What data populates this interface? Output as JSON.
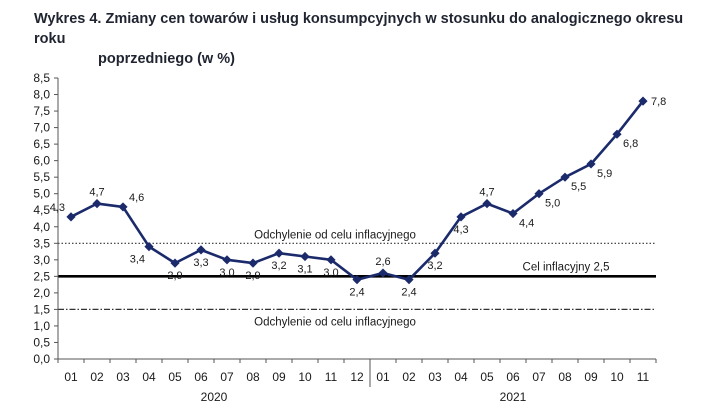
{
  "title": {
    "line1": "Wykres 4. Zmiany cen towarów i usług konsumpcyjnych w stosunku do analogicznego okresu roku",
    "line2": "poprzedniego (w %)"
  },
  "colors": {
    "series": "#1b2a6b",
    "axis": "#555555",
    "target_line": "#000000",
    "deviation_line": "#333333",
    "title": "#1f2430"
  },
  "chart_data": {
    "type": "line",
    "title": "Wykres 4. Zmiany cen towarów i usług konsumpcyjnych w stosunku do analogicznego okresu roku poprzedniego (w %)",
    "xlabel": "",
    "ylabel": "",
    "categories": [
      "01",
      "02",
      "03",
      "04",
      "05",
      "06",
      "07",
      "08",
      "09",
      "10",
      "11",
      "12",
      "01",
      "02",
      "03",
      "04",
      "05",
      "06",
      "07",
      "08",
      "09",
      "10",
      "11"
    ],
    "year_groups": [
      {
        "label": "2020",
        "start": 0,
        "end": 11
      },
      {
        "label": "2021",
        "start": 12,
        "end": 22
      }
    ],
    "series": [
      {
        "values": [
          4.3,
          4.7,
          4.6,
          3.4,
          2.9,
          3.3,
          3.0,
          2.9,
          3.2,
          3.1,
          3.0,
          2.4,
          2.6,
          2.4,
          3.2,
          4.3,
          4.7,
          4.4,
          5.0,
          5.5,
          5.9,
          6.8,
          7.8
        ],
        "labels": [
          "4,3",
          "4,7",
          "4,6",
          "3,4",
          "2,9",
          "3,3",
          "3,0",
          "2,9",
          "3,2",
          "3,1",
          "3,0",
          "2,4",
          "2,6",
          "2,4",
          "3,2",
          "4,3",
          "4,7",
          "4,4",
          "5,0",
          "5,5",
          "5,9",
          "6,8",
          "7,8"
        ],
        "label_pos": [
          "above-left",
          "above",
          "above-right",
          "below-left",
          "below",
          "below",
          "below",
          "below",
          "below",
          "below",
          "below",
          "below",
          "above",
          "below",
          "below",
          "below",
          "above",
          "below-right",
          "below-right",
          "below-right",
          "below-right",
          "below-right",
          "right"
        ],
        "marker": "diamond"
      }
    ],
    "ylim": [
      0.0,
      8.5
    ],
    "yticks": [
      0.0,
      0.5,
      1.0,
      1.5,
      2.0,
      2.5,
      3.0,
      3.5,
      4.0,
      4.5,
      5.0,
      5.5,
      6.0,
      6.5,
      7.0,
      7.5,
      8.0,
      8.5
    ],
    "ytick_labels": [
      "0,0",
      "0,5",
      "1,0",
      "1,5",
      "2,0",
      "2,5",
      "3,0",
      "3,5",
      "4,0",
      "4,5",
      "5,0",
      "5,5",
      "6,0",
      "6,5",
      "7,0",
      "7,5",
      "8,0",
      "8,5"
    ],
    "reference_lines": [
      {
        "value": 2.5,
        "style": "solid-thick",
        "label": "Cel inflacyjny 2,5"
      },
      {
        "value": 3.5,
        "style": "dotted",
        "label": "Odchylenie od celu inflacyjnego"
      },
      {
        "value": 1.5,
        "style": "dash-dot",
        "label": "Odchylenie od celu inflacyjnego"
      }
    ],
    "grid": false,
    "legend": "none"
  }
}
